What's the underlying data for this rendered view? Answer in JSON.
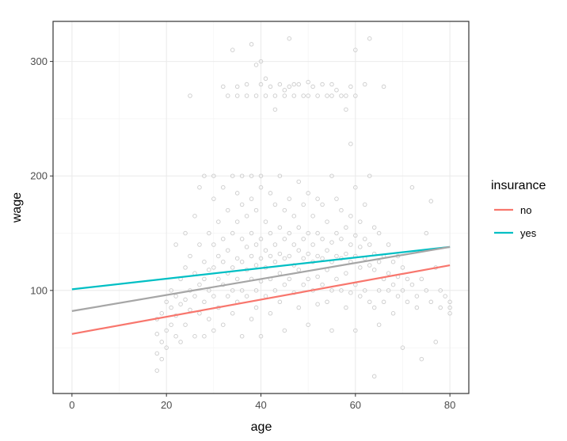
{
  "chart_data": {
    "type": "scatter",
    "title": "",
    "xlabel": "age",
    "ylabel": "wage",
    "xlim": [
      -4,
      84
    ],
    "ylim": [
      10,
      335
    ],
    "x_ticks": [
      0,
      20,
      40,
      60,
      80
    ],
    "y_ticks": [
      100,
      200,
      300
    ],
    "grid": true,
    "point_color": "#cccccc",
    "legend": {
      "title": "insurance",
      "placement": "right",
      "entries": [
        {
          "label": "no",
          "color": "#F8766D"
        },
        {
          "label": "yes",
          "color": "#00BFC4"
        }
      ]
    },
    "lines": [
      {
        "name": "no",
        "color": "#F8766D",
        "x": [
          0,
          80
        ],
        "y": [
          62,
          122
        ]
      },
      {
        "name": "yes",
        "color": "#00BFC4",
        "x": [
          0,
          80
        ],
        "y": [
          101,
          138
        ]
      },
      {
        "name": "",
        "color": "#a6a6a6",
        "x": [
          0,
          80
        ],
        "y": [
          82,
          138
        ]
      }
    ],
    "scatter_points": [
      [
        18,
        45
      ],
      [
        18,
        62
      ],
      [
        18,
        75
      ],
      [
        18,
        30
      ],
      [
        19,
        55
      ],
      [
        19,
        80
      ],
      [
        19,
        40
      ],
      [
        20,
        90
      ],
      [
        20,
        65
      ],
      [
        20,
        50
      ],
      [
        21,
        85
      ],
      [
        21,
        70
      ],
      [
        21,
        100
      ],
      [
        22,
        60
      ],
      [
        22,
        95
      ],
      [
        22,
        78
      ],
      [
        22,
        140
      ],
      [
        23,
        88
      ],
      [
        23,
        110
      ],
      [
        23,
        55
      ],
      [
        24,
        92
      ],
      [
        24,
        120
      ],
      [
        24,
        70
      ],
      [
        24,
        150
      ],
      [
        25,
        100
      ],
      [
        25,
        83
      ],
      [
        25,
        130
      ],
      [
        25,
        270
      ],
      [
        26,
        115
      ],
      [
        26,
        95
      ],
      [
        26,
        60
      ],
      [
        26,
        165
      ],
      [
        27,
        105
      ],
      [
        27,
        140
      ],
      [
        27,
        80
      ],
      [
        27,
        190
      ],
      [
        28,
        110
      ],
      [
        28,
        125
      ],
      [
        28,
        90
      ],
      [
        28,
        200
      ],
      [
        28,
        60
      ],
      [
        29,
        118
      ],
      [
        29,
        100
      ],
      [
        29,
        150
      ],
      [
        29,
        75
      ],
      [
        30,
        120
      ],
      [
        30,
        140
      ],
      [
        30,
        95
      ],
      [
        30,
        180
      ],
      [
        30,
        65
      ],
      [
        30,
        200
      ],
      [
        31,
        110
      ],
      [
        31,
        130
      ],
      [
        31,
        160
      ],
      [
        31,
        85
      ],
      [
        32,
        125
      ],
      [
        32,
        105
      ],
      [
        32,
        145
      ],
      [
        32,
        190
      ],
      [
        32,
        70
      ],
      [
        32,
        278
      ],
      [
        33,
        115
      ],
      [
        33,
        135
      ],
      [
        33,
        95
      ],
      [
        33,
        170
      ],
      [
        33,
        270
      ],
      [
        34,
        120
      ],
      [
        34,
        150
      ],
      [
        34,
        100
      ],
      [
        34,
        200
      ],
      [
        34,
        80
      ],
      [
        34,
        310
      ],
      [
        35,
        128
      ],
      [
        35,
        110
      ],
      [
        35,
        160
      ],
      [
        35,
        90
      ],
      [
        35,
        185
      ],
      [
        35,
        270
      ],
      [
        35,
        278
      ],
      [
        36,
        125
      ],
      [
        36,
        145
      ],
      [
        36,
        100
      ],
      [
        36,
        175
      ],
      [
        36,
        60
      ],
      [
        36,
        200
      ],
      [
        37,
        118
      ],
      [
        37,
        138
      ],
      [
        37,
        95
      ],
      [
        37,
        165
      ],
      [
        37,
        270
      ],
      [
        37,
        280
      ],
      [
        38,
        130
      ],
      [
        38,
        110
      ],
      [
        38,
        150
      ],
      [
        38,
        180
      ],
      [
        38,
        75
      ],
      [
        38,
        200
      ],
      [
        38,
        315
      ],
      [
        39,
        122
      ],
      [
        39,
        140
      ],
      [
        39,
        100
      ],
      [
        39,
        170
      ],
      [
        39,
        85
      ],
      [
        39,
        297
      ],
      [
        39,
        270
      ],
      [
        40,
        128
      ],
      [
        40,
        145
      ],
      [
        40,
        108
      ],
      [
        40,
        190
      ],
      [
        40,
        60
      ],
      [
        40,
        200
      ],
      [
        40,
        300
      ],
      [
        40,
        280
      ],
      [
        41,
        120
      ],
      [
        41,
        135
      ],
      [
        41,
        95
      ],
      [
        41,
        160
      ],
      [
        41,
        270
      ],
      [
        41,
        285
      ],
      [
        42,
        130
      ],
      [
        42,
        150
      ],
      [
        42,
        110
      ],
      [
        42,
        185
      ],
      [
        42,
        80
      ],
      [
        42,
        278
      ],
      [
        43,
        125
      ],
      [
        43,
        140
      ],
      [
        43,
        100
      ],
      [
        43,
        175
      ],
      [
        43,
        258
      ],
      [
        43,
        270
      ],
      [
        44,
        132
      ],
      [
        44,
        115
      ],
      [
        44,
        155
      ],
      [
        44,
        90
      ],
      [
        44,
        200
      ],
      [
        44,
        280
      ],
      [
        45,
        128
      ],
      [
        45,
        145
      ],
      [
        45,
        105
      ],
      [
        45,
        170
      ],
      [
        45,
        65
      ],
      [
        45,
        270
      ],
      [
        45,
        275
      ],
      [
        46,
        130
      ],
      [
        46,
        150
      ],
      [
        46,
        110
      ],
      [
        46,
        180
      ],
      [
        46,
        320
      ],
      [
        46,
        278
      ],
      [
        47,
        122
      ],
      [
        47,
        140
      ],
      [
        47,
        98
      ],
      [
        47,
        165
      ],
      [
        47,
        270
      ],
      [
        47,
        280
      ],
      [
        48,
        135
      ],
      [
        48,
        118
      ],
      [
        48,
        155
      ],
      [
        48,
        85
      ],
      [
        48,
        195
      ],
      [
        48,
        280
      ],
      [
        49,
        128
      ],
      [
        49,
        145
      ],
      [
        49,
        105
      ],
      [
        49,
        175
      ],
      [
        49,
        270
      ],
      [
        50,
        132
      ],
      [
        50,
        150
      ],
      [
        50,
        110
      ],
      [
        50,
        185
      ],
      [
        50,
        70
      ],
      [
        50,
        282
      ],
      [
        50,
        270
      ],
      [
        51,
        125
      ],
      [
        51,
        140
      ],
      [
        51,
        100
      ],
      [
        51,
        165
      ],
      [
        51,
        278
      ],
      [
        52,
        130
      ],
      [
        52,
        150
      ],
      [
        52,
        112
      ],
      [
        52,
        180
      ],
      [
        52,
        88
      ],
      [
        52,
        270
      ],
      [
        53,
        128
      ],
      [
        53,
        145
      ],
      [
        53,
        105
      ],
      [
        53,
        175
      ],
      [
        53,
        280
      ],
      [
        54,
        135
      ],
      [
        54,
        118
      ],
      [
        54,
        160
      ],
      [
        54,
        90
      ],
      [
        54,
        270
      ],
      [
        55,
        125
      ],
      [
        55,
        142
      ],
      [
        55,
        100
      ],
      [
        55,
        200
      ],
      [
        55,
        65
      ],
      [
        55,
        280
      ],
      [
        55,
        270
      ],
      [
        56,
        130
      ],
      [
        56,
        150
      ],
      [
        56,
        110
      ],
      [
        56,
        180
      ],
      [
        56,
        275
      ],
      [
        57,
        128
      ],
      [
        57,
        145
      ],
      [
        57,
        100
      ],
      [
        57,
        170
      ],
      [
        57,
        270
      ],
      [
        58,
        132
      ],
      [
        58,
        115
      ],
      [
        58,
        155
      ],
      [
        58,
        85
      ],
      [
        58,
        258
      ],
      [
        58,
        270
      ],
      [
        59,
        125
      ],
      [
        59,
        140
      ],
      [
        59,
        98
      ],
      [
        59,
        165
      ],
      [
        59,
        228
      ],
      [
        59,
        278
      ],
      [
        60,
        130
      ],
      [
        60,
        148
      ],
      [
        60,
        105
      ],
      [
        60,
        190
      ],
      [
        60,
        65
      ],
      [
        60,
        310
      ],
      [
        60,
        270
      ],
      [
        61,
        120
      ],
      [
        61,
        138
      ],
      [
        61,
        95
      ],
      [
        61,
        160
      ],
      [
        62,
        128
      ],
      [
        62,
        145
      ],
      [
        62,
        100
      ],
      [
        62,
        175
      ],
      [
        62,
        280
      ],
      [
        63,
        122
      ],
      [
        63,
        140
      ],
      [
        63,
        90
      ],
      [
        63,
        200
      ],
      [
        63,
        320
      ],
      [
        64,
        118
      ],
      [
        64,
        132
      ],
      [
        64,
        85
      ],
      [
        64,
        155
      ],
      [
        64,
        25
      ],
      [
        65,
        125
      ],
      [
        65,
        100
      ],
      [
        65,
        150
      ],
      [
        65,
        70
      ],
      [
        66,
        110
      ],
      [
        66,
        130
      ],
      [
        66,
        90
      ],
      [
        66,
        278
      ],
      [
        67,
        115
      ],
      [
        67,
        100
      ],
      [
        67,
        140
      ],
      [
        68,
        105
      ],
      [
        68,
        125
      ],
      [
        68,
        80
      ],
      [
        69,
        112
      ],
      [
        69,
        95
      ],
      [
        69,
        130
      ],
      [
        70,
        100
      ],
      [
        70,
        120
      ],
      [
        70,
        50
      ],
      [
        71,
        90
      ],
      [
        71,
        110
      ],
      [
        72,
        105
      ],
      [
        72,
        190
      ],
      [
        73,
        95
      ],
      [
        73,
        85
      ],
      [
        74,
        110
      ],
      [
        74,
        40
      ],
      [
        75,
        100
      ],
      [
        75,
        150
      ],
      [
        76,
        90
      ],
      [
        76,
        178
      ],
      [
        77,
        55
      ],
      [
        77,
        120
      ],
      [
        78,
        100
      ],
      [
        78,
        85
      ],
      [
        79,
        95
      ],
      [
        80,
        90
      ],
      [
        80,
        85
      ],
      [
        80,
        80
      ]
    ]
  }
}
